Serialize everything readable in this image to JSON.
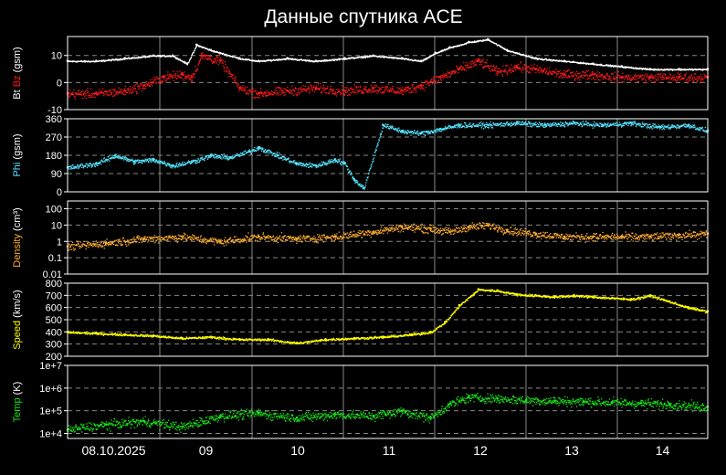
{
  "title": "Данные спутника ACE",
  "x_labels": [
    "08.10.2025",
    "09",
    "10",
    "11",
    "12",
    "13",
    "14"
  ],
  "colors": {
    "background": "#000000",
    "frame": "#ffffff",
    "grid": "#888888",
    "bt": "#ffffff",
    "bz": "#ff1a1a",
    "phi": "#55e6ff",
    "density": "#ffae30",
    "speed": "#ffff00",
    "temp": "#18e818"
  },
  "chart_data": [
    {
      "type": "scatter",
      "name": "bt-bz",
      "ylabel_parts": [
        {
          "text": "Bt ",
          "color": "#ffffff"
        },
        {
          "text": "Bz",
          "color": "#ff1a1a"
        },
        {
          "text": " (gsm)",
          "color": "#ffffff"
        }
      ],
      "yscale": "linear",
      "ylim": [
        -10,
        17
      ],
      "yticks": [
        {
          "v": 10,
          "label": "10"
        },
        {
          "v": 0,
          "label": "0"
        },
        {
          "v": -10,
          "label": "-10"
        }
      ],
      "xlim": [
        0,
        6.7
      ],
      "series": [
        {
          "key": "bt",
          "color": "#ffffff",
          "spread": 0.4,
          "x": [
            0,
            0.3,
            0.6,
            0.9,
            1.1,
            1.25,
            1.35,
            1.5,
            1.8,
            2.0,
            2.3,
            2.6,
            2.9,
            3.2,
            3.5,
            3.7,
            3.85,
            4.0,
            4.2,
            4.4,
            4.6,
            4.9,
            5.2,
            5.5,
            5.8,
            6.1,
            6.4,
            6.7
          ],
          "y": [
            8,
            8,
            9,
            10,
            10,
            7,
            14,
            12,
            9,
            8,
            9,
            8,
            9,
            10,
            9,
            8,
            11,
            13,
            15,
            16,
            12,
            9,
            8,
            7,
            6,
            5,
            5,
            5
          ]
        },
        {
          "key": "bz",
          "color": "#ff1a1a",
          "spread": 2.5,
          "x": [
            0,
            0.3,
            0.6,
            0.8,
            1.0,
            1.2,
            1.3,
            1.4,
            1.6,
            1.8,
            2.0,
            2.3,
            2.6,
            2.9,
            3.2,
            3.5,
            3.7,
            3.9,
            4.1,
            4.3,
            4.5,
            4.7,
            4.9,
            5.2,
            5.5,
            5.8,
            6.1,
            6.4,
            6.7
          ],
          "y": [
            -4,
            -4,
            -3,
            -1,
            2,
            3,
            2,
            10,
            8,
            -2,
            -4,
            -3,
            -2,
            -3,
            -2,
            -3,
            -1,
            2,
            5,
            8,
            4,
            6,
            5,
            3,
            3,
            2,
            2,
            2,
            2
          ]
        }
      ]
    },
    {
      "type": "scatter",
      "name": "phi",
      "ylabel_parts": [
        {
          "text": "Phi",
          "color": "#55e6ff"
        },
        {
          "text": " (gsm)",
          "color": "#ffffff"
        }
      ],
      "yscale": "linear",
      "ylim": [
        0,
        360
      ],
      "yticks": [
        {
          "v": 360,
          "label": "360"
        },
        {
          "v": 270,
          "label": "270"
        },
        {
          "v": 180,
          "label": "180"
        },
        {
          "v": 90,
          "label": "90"
        },
        {
          "v": 0,
          "label": "0"
        }
      ],
      "xlim": [
        0,
        6.7
      ],
      "series": [
        {
          "key": "phi",
          "color": "#55e6ff",
          "spread": 18,
          "x": [
            0,
            0.3,
            0.5,
            0.7,
            0.9,
            1.1,
            1.3,
            1.5,
            1.7,
            1.9,
            2.0,
            2.2,
            2.4,
            2.6,
            2.8,
            2.9,
            3.0,
            3.1,
            3.3,
            3.5,
            3.7,
            3.9,
            4.1,
            4.4,
            4.7,
            5.0,
            5.3,
            5.6,
            5.9,
            6.2,
            6.5,
            6.7
          ],
          "y": [
            120,
            140,
            180,
            150,
            160,
            130,
            150,
            180,
            170,
            200,
            220,
            180,
            140,
            130,
            160,
            140,
            60,
            20,
            330,
            300,
            290,
            310,
            330,
            330,
            340,
            330,
            340,
            330,
            340,
            320,
            330,
            300
          ]
        }
      ]
    },
    {
      "type": "scatter",
      "name": "density",
      "ylabel_parts": [
        {
          "text": "Density",
          "color": "#ffae30"
        },
        {
          "text": " (cm³)",
          "color": "#ffffff"
        }
      ],
      "yscale": "log",
      "ylim": [
        0.01,
        300
      ],
      "yticks": [
        {
          "v": 100,
          "label": "100"
        },
        {
          "v": 10,
          "label": "10"
        },
        {
          "v": 1,
          "label": "1"
        },
        {
          "v": 0.1,
          "label": "0.1"
        },
        {
          "v": 0.01,
          "label": "0.01"
        }
      ],
      "xlim": [
        0,
        6.7
      ],
      "series": [
        {
          "key": "density",
          "color": "#ffae30",
          "spread": 0.35,
          "x": [
            0,
            0.4,
            0.8,
            1.2,
            1.6,
            2.0,
            2.4,
            2.8,
            3.2,
            3.5,
            3.8,
            4.0,
            4.2,
            4.4,
            4.6,
            4.9,
            5.2,
            5.5,
            5.8,
            6.1,
            6.4,
            6.7
          ],
          "y": [
            0.5,
            0.8,
            1.5,
            2,
            1,
            2,
            1.5,
            2,
            4,
            8,
            6,
            4,
            8,
            10,
            5,
            3,
            2,
            2,
            2,
            2,
            2.5,
            3
          ]
        }
      ]
    },
    {
      "type": "scatter",
      "name": "speed",
      "ylabel_parts": [
        {
          "text": "Speed",
          "color": "#ffff00"
        },
        {
          "text": " (km/s)",
          "color": "#ffffff"
        }
      ],
      "yscale": "linear",
      "ylim": [
        200,
        800
      ],
      "yticks": [
        {
          "v": 800,
          "label": "800"
        },
        {
          "v": 700,
          "label": "700"
        },
        {
          "v": 600,
          "label": "600"
        },
        {
          "v": 500,
          "label": "500"
        },
        {
          "v": 400,
          "label": "400"
        },
        {
          "v": 300,
          "label": "300"
        },
        {
          "v": 200,
          "label": "200"
        }
      ],
      "xlim": [
        0,
        6.7
      ],
      "series": [
        {
          "key": "speed",
          "color": "#ffff00",
          "spread": 14,
          "x": [
            0,
            0.3,
            0.6,
            0.9,
            1.2,
            1.5,
            1.8,
            2.1,
            2.4,
            2.7,
            3.0,
            3.3,
            3.6,
            3.8,
            3.95,
            4.1,
            4.3,
            4.5,
            4.7,
            4.9,
            5.1,
            5.3,
            5.5,
            5.7,
            5.9,
            6.1,
            6.3,
            6.5,
            6.7
          ],
          "y": [
            400,
            390,
            380,
            370,
            350,
            360,
            340,
            340,
            310,
            340,
            350,
            360,
            380,
            400,
            480,
            620,
            750,
            740,
            710,
            700,
            690,
            700,
            690,
            680,
            670,
            700,
            650,
            600,
            570
          ]
        }
      ]
    },
    {
      "type": "scatter",
      "name": "temp",
      "ylabel_parts": [
        {
          "text": "Temp",
          "color": "#18e818"
        },
        {
          "text": " (K)",
          "color": "#ffffff"
        }
      ],
      "yscale": "log",
      "ylim": [
        6000,
        10000000
      ],
      "yticks": [
        {
          "v": 10000000,
          "label": "1e+7"
        },
        {
          "v": 1000000,
          "label": "1e+6"
        },
        {
          "v": 100000,
          "label": "1e+5"
        },
        {
          "v": 10000,
          "label": "1e+4"
        }
      ],
      "xlim": [
        0,
        6.7
      ],
      "series": [
        {
          "key": "temp",
          "color": "#18e818",
          "spread": 0.3,
          "x": [
            0,
            0.4,
            0.8,
            1.2,
            1.6,
            2.0,
            2.4,
            2.8,
            3.2,
            3.5,
            3.8,
            4.0,
            4.2,
            4.5,
            4.8,
            5.1,
            5.4,
            5.7,
            6.0,
            6.3,
            6.7
          ],
          "y": [
            15000,
            25000,
            35000,
            20000,
            60000,
            80000,
            50000,
            70000,
            60000,
            100000,
            50000,
            200000,
            400000,
            350000,
            300000,
            280000,
            260000,
            240000,
            220000,
            200000,
            150000
          ]
        }
      ]
    }
  ]
}
